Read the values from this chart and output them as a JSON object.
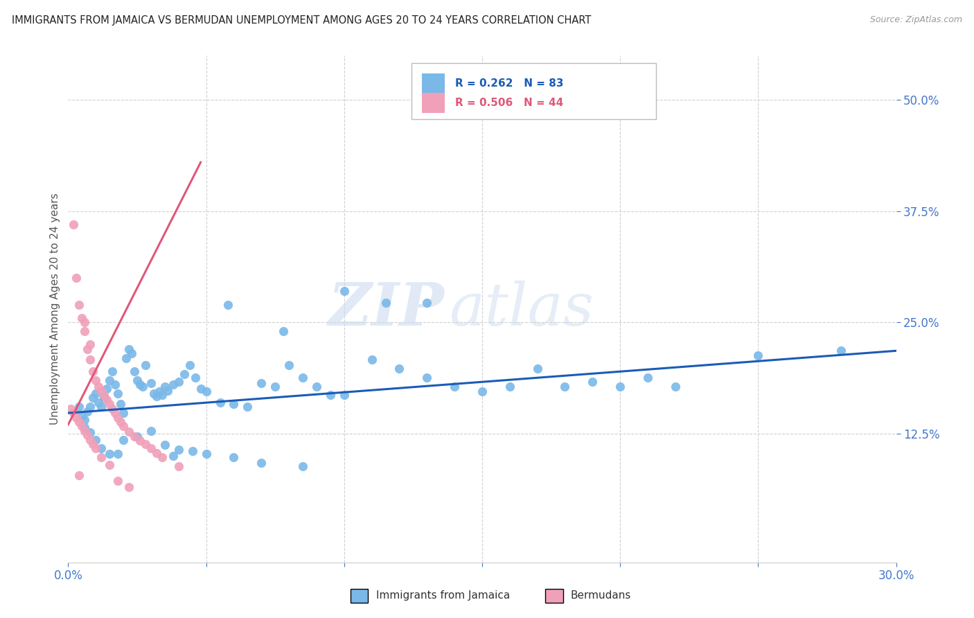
{
  "title": "IMMIGRANTS FROM JAMAICA VS BERMUDAN UNEMPLOYMENT AMONG AGES 20 TO 24 YEARS CORRELATION CHART",
  "source": "Source: ZipAtlas.com",
  "ylabel": "Unemployment Among Ages 20 to 24 years",
  "ytick_labels": [
    "50.0%",
    "37.5%",
    "25.0%",
    "12.5%"
  ],
  "ytick_values": [
    0.5,
    0.375,
    0.25,
    0.125
  ],
  "xmin": 0.0,
  "xmax": 0.3,
  "ymin": -0.02,
  "ymax": 0.55,
  "color_blue": "#7ab8e8",
  "color_pink": "#f0a0b8",
  "color_blue_line": "#1a5cb5",
  "color_pink_line": "#e05878",
  "watermark_zip": "ZIP",
  "watermark_atlas": "atlas",
  "legend_label1": "Immigrants from Jamaica",
  "legend_label2": "Bermudans",
  "legend_r1": "R = 0.262   N = 83",
  "legend_r2": "R = 0.506   N = 44",
  "blue_line_x": [
    0.0,
    0.3
  ],
  "blue_line_y": [
    0.148,
    0.218
  ],
  "pink_line_x": [
    0.0,
    0.048
  ],
  "pink_line_y": [
    0.135,
    0.43
  ],
  "blue_x": [
    0.004,
    0.005,
    0.006,
    0.007,
    0.008,
    0.009,
    0.01,
    0.011,
    0.012,
    0.013,
    0.014,
    0.015,
    0.016,
    0.017,
    0.018,
    0.019,
    0.02,
    0.021,
    0.022,
    0.023,
    0.024,
    0.025,
    0.026,
    0.027,
    0.028,
    0.03,
    0.031,
    0.032,
    0.033,
    0.034,
    0.035,
    0.036,
    0.038,
    0.04,
    0.042,
    0.044,
    0.046,
    0.048,
    0.05,
    0.055,
    0.06,
    0.065,
    0.07,
    0.075,
    0.08,
    0.085,
    0.09,
    0.095,
    0.1,
    0.11,
    0.12,
    0.13,
    0.14,
    0.15,
    0.16,
    0.17,
    0.18,
    0.19,
    0.2,
    0.21,
    0.22,
    0.25,
    0.28,
    0.006,
    0.008,
    0.01,
    0.012,
    0.015,
    0.018,
    0.02,
    0.025,
    0.03,
    0.035,
    0.04,
    0.05,
    0.06,
    0.07,
    0.085,
    0.1,
    0.115,
    0.13,
    0.058,
    0.078,
    0.038,
    0.045
  ],
  "blue_y": [
    0.155,
    0.145,
    0.14,
    0.15,
    0.155,
    0.165,
    0.17,
    0.16,
    0.155,
    0.165,
    0.175,
    0.185,
    0.195,
    0.18,
    0.17,
    0.158,
    0.148,
    0.21,
    0.22,
    0.215,
    0.195,
    0.185,
    0.18,
    0.178,
    0.202,
    0.182,
    0.17,
    0.167,
    0.172,
    0.168,
    0.178,
    0.173,
    0.18,
    0.183,
    0.192,
    0.202,
    0.188,
    0.175,
    0.172,
    0.16,
    0.158,
    0.155,
    0.182,
    0.178,
    0.202,
    0.188,
    0.178,
    0.168,
    0.168,
    0.208,
    0.198,
    0.188,
    0.178,
    0.172,
    0.178,
    0.198,
    0.178,
    0.183,
    0.178,
    0.188,
    0.178,
    0.213,
    0.218,
    0.132,
    0.126,
    0.118,
    0.108,
    0.102,
    0.102,
    0.118,
    0.122,
    0.128,
    0.112,
    0.107,
    0.102,
    0.098,
    0.092,
    0.088,
    0.285,
    0.272,
    0.272,
    0.27,
    0.24,
    0.1,
    0.105
  ],
  "pink_x": [
    0.002,
    0.003,
    0.004,
    0.005,
    0.006,
    0.007,
    0.008,
    0.009,
    0.01,
    0.011,
    0.012,
    0.013,
    0.014,
    0.015,
    0.016,
    0.017,
    0.018,
    0.019,
    0.02,
    0.022,
    0.024,
    0.026,
    0.028,
    0.03,
    0.032,
    0.034,
    0.04,
    0.001,
    0.002,
    0.003,
    0.004,
    0.005,
    0.006,
    0.007,
    0.008,
    0.009,
    0.01,
    0.012,
    0.015,
    0.018,
    0.022,
    0.006,
    0.008,
    0.004
  ],
  "pink_y": [
    0.36,
    0.3,
    0.27,
    0.255,
    0.24,
    0.22,
    0.208,
    0.195,
    0.185,
    0.178,
    0.173,
    0.168,
    0.163,
    0.158,
    0.153,
    0.148,
    0.143,
    0.138,
    0.133,
    0.127,
    0.122,
    0.117,
    0.113,
    0.108,
    0.103,
    0.098,
    0.088,
    0.153,
    0.148,
    0.143,
    0.138,
    0.133,
    0.128,
    0.123,
    0.118,
    0.113,
    0.108,
    0.098,
    0.09,
    0.072,
    0.065,
    0.25,
    0.225,
    0.078
  ],
  "xtick_positions": [
    0.0,
    0.05,
    0.1,
    0.15,
    0.2,
    0.25,
    0.3
  ]
}
